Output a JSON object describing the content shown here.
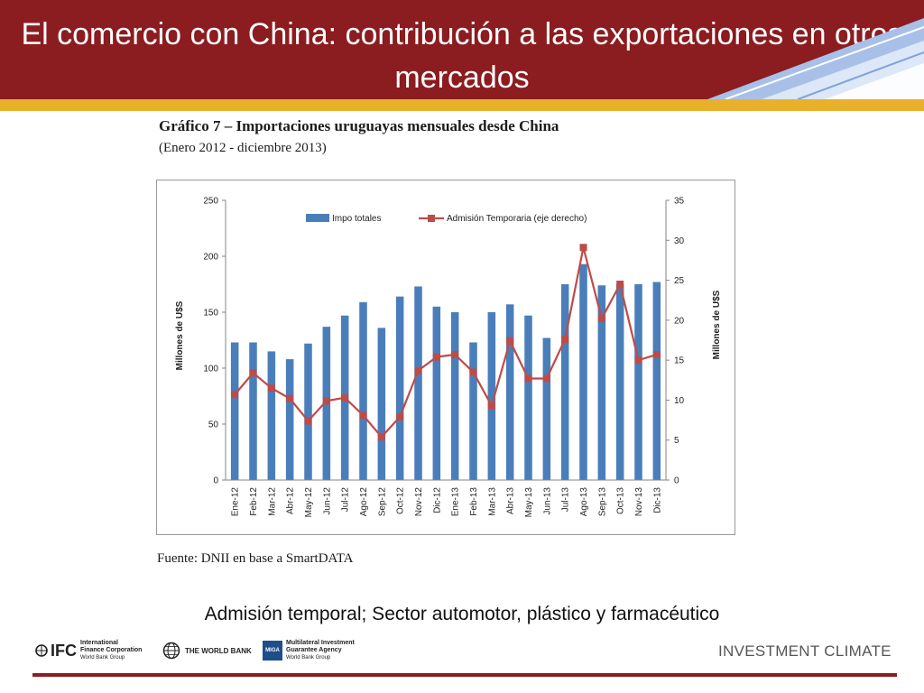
{
  "slide": {
    "title": "El comercio con China: contribución a las exportaciones en otros mercados",
    "caption": "Admisión temporal; Sector automotor, plástico y farmacéutico",
    "brand_footer": "INVESTMENT CLIMATE",
    "colors": {
      "header": "#8b1c1f",
      "gold": "#e9b12b",
      "bar": "#4a7ebb",
      "line": "#be4b48"
    }
  },
  "logos": {
    "ifc_mark": "IFC",
    "ifc_text": [
      "International",
      "Finance Corporation",
      "World Bank Group"
    ],
    "wb_text": "THE WORLD BANK",
    "miga_mark": "MIGA",
    "miga_text": [
      "Multilateral Investment",
      "Guarantee Agency",
      "World Bank Group"
    ]
  },
  "figure": {
    "title": "Gráfico 7 – Importaciones uruguayas mensuales desde China",
    "subtitle": "(Enero 2012 -  diciembre 2013)",
    "source": "Fuente: DNII en base a SmartDATA"
  },
  "chart_data": {
    "type": "bar",
    "categories": [
      "Ene-12",
      "Feb-12",
      "Mar-12",
      "Abr-12",
      "May-12",
      "Jun-12",
      "Jul-12",
      "Ago-12",
      "Sep-12",
      "Oct-12",
      "Nov-12",
      "Dic-12",
      "Ene-13",
      "Feb-13",
      "Mar-13",
      "Abr-13",
      "May-13",
      "Jun-13",
      "Jul-13",
      "Ago-13",
      "Sep-13",
      "Oct-13",
      "Nov-13",
      "Dic-13"
    ],
    "series": [
      {
        "name": "Impo totales",
        "type": "bar",
        "axis": "left",
        "values": [
          123,
          123,
          115,
          108,
          122,
          137,
          147,
          159,
          136,
          164,
          173,
          155,
          150,
          123,
          150,
          157,
          147,
          127,
          175,
          193,
          174,
          175,
          175,
          177
        ]
      },
      {
        "name": "Admisión Temporaria (eje derecho)",
        "type": "line",
        "axis": "right",
        "values": [
          10.7,
          13.4,
          11.5,
          10.2,
          7.4,
          9.9,
          10.3,
          8.1,
          5.4,
          7.9,
          13.7,
          15.4,
          15.7,
          13.5,
          9.3,
          17.4,
          12.7,
          12.7,
          17.6,
          29.1,
          20.2,
          24.5,
          15.0,
          15.7
        ]
      }
    ],
    "ylabel": "Millones de U$S",
    "y2label": "Millones de U$S",
    "ylim": [
      0,
      250
    ],
    "y2lim": [
      0,
      35
    ],
    "yticks": [
      "0",
      "50",
      "100",
      "150",
      "200",
      "250"
    ],
    "y2ticks": [
      "0",
      "5",
      "10",
      "15",
      "20",
      "25",
      "30",
      "35"
    ],
    "legend_position": "top",
    "grid": false
  }
}
